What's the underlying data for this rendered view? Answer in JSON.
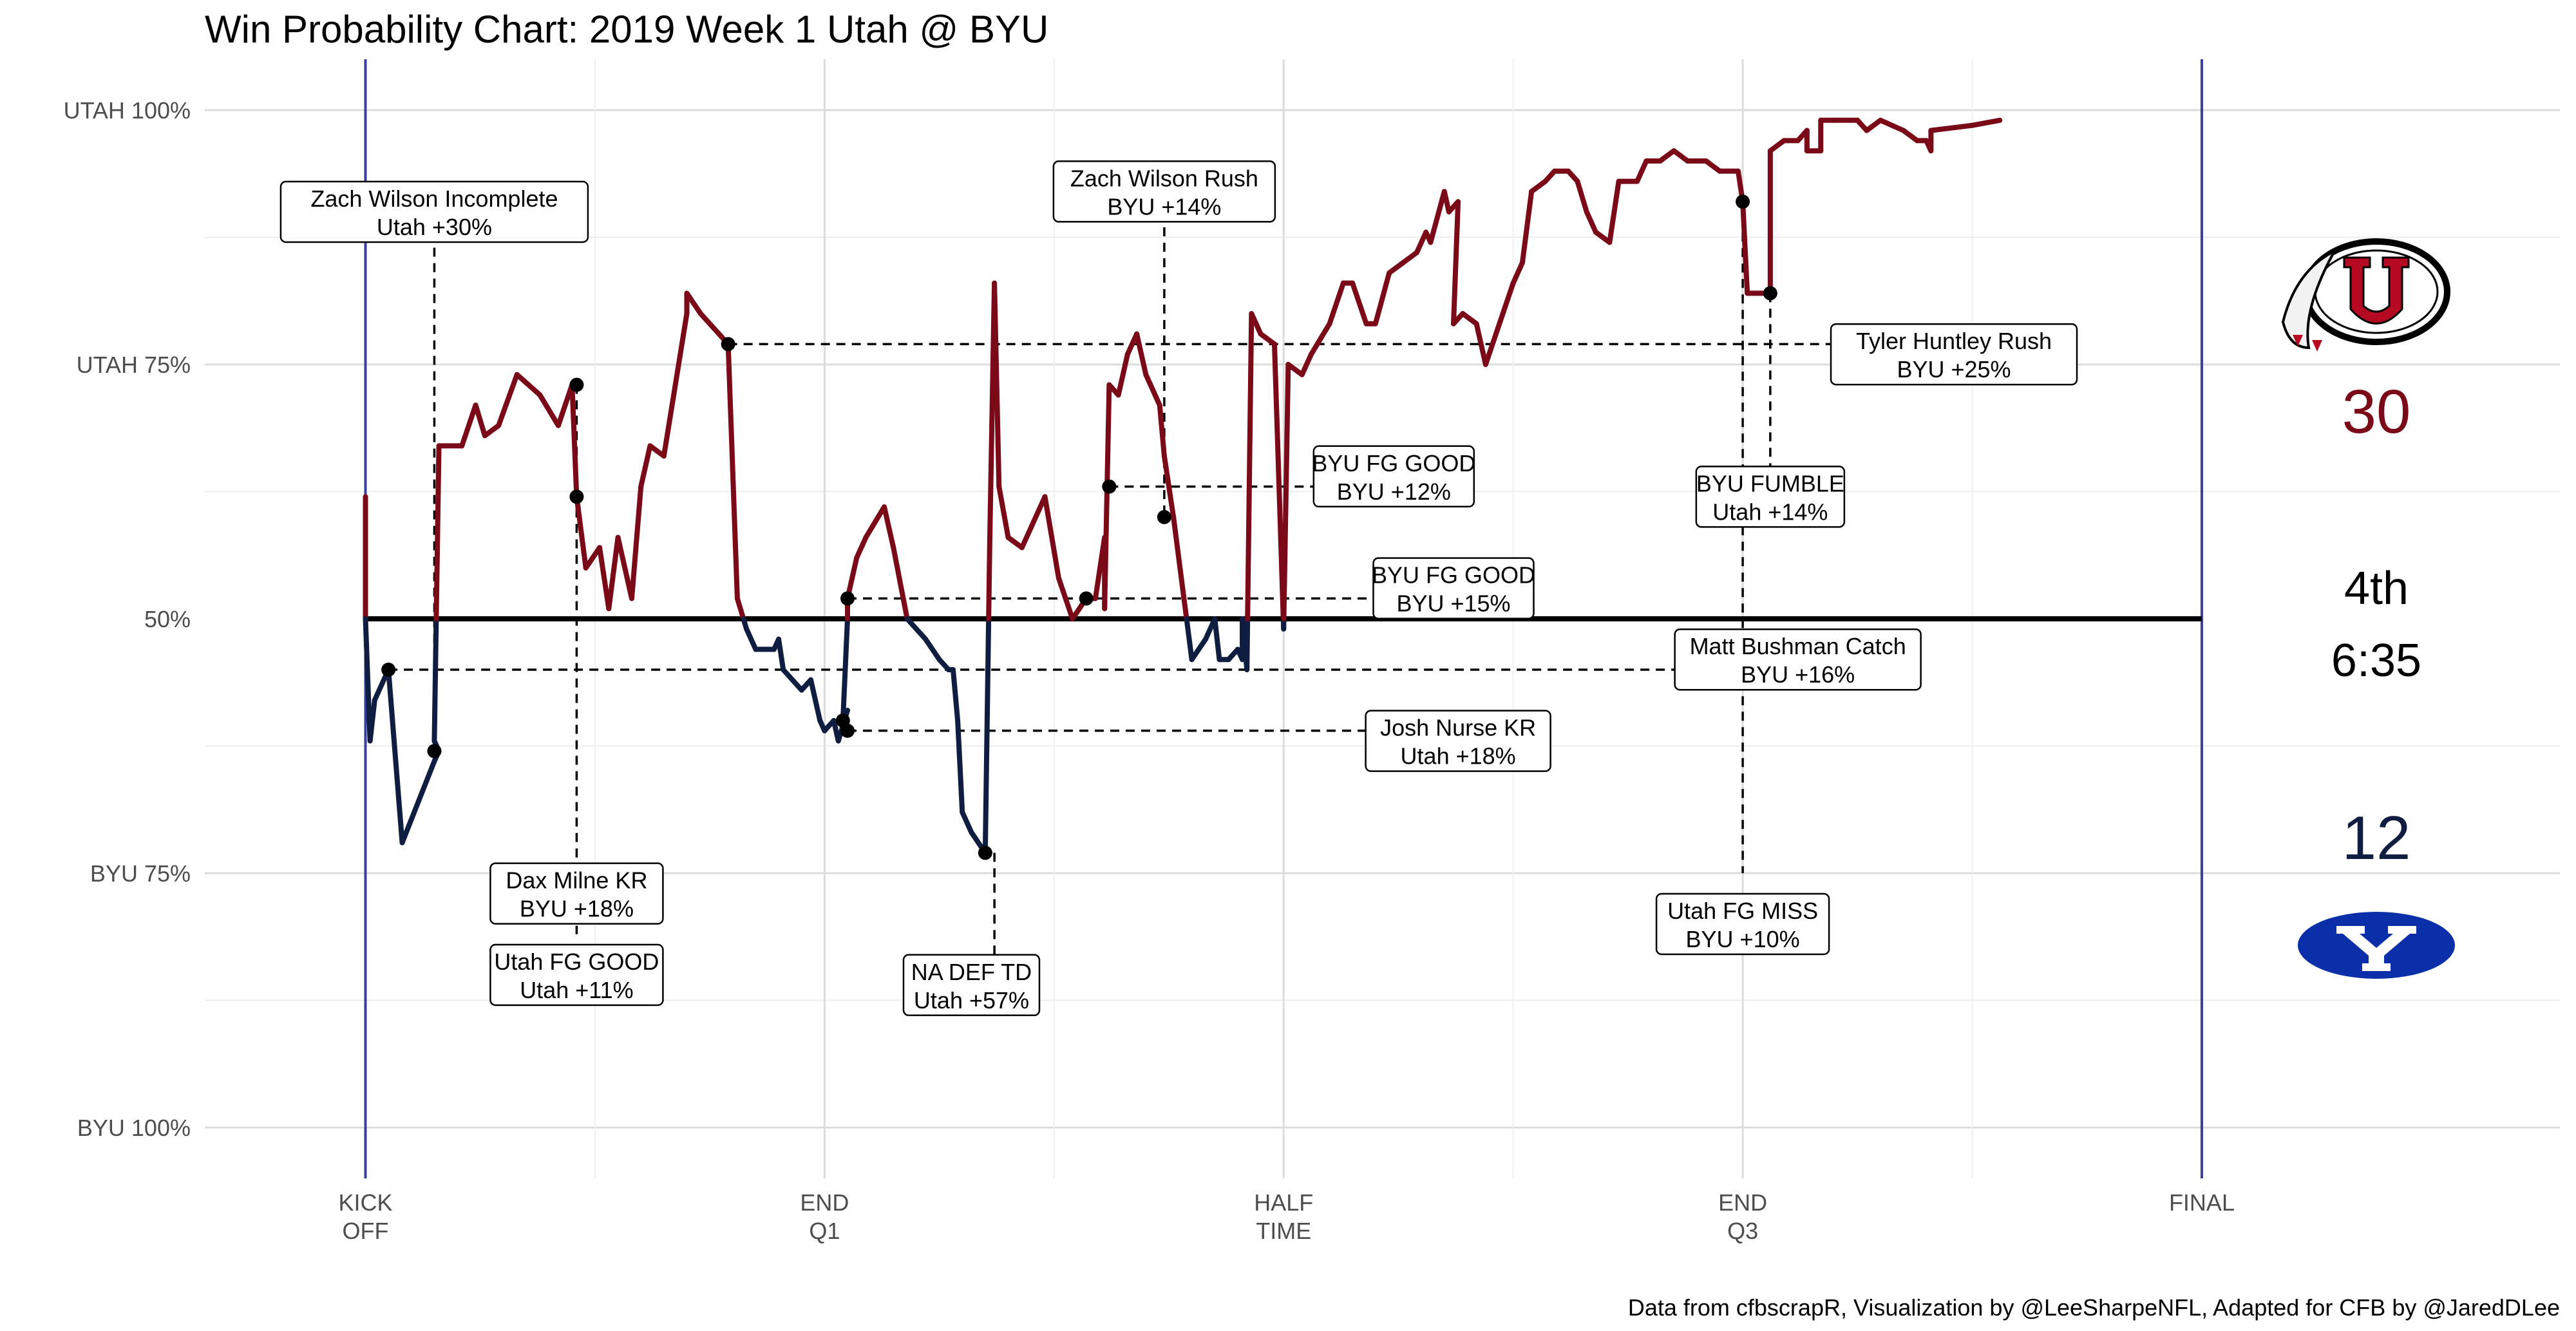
{
  "chart_data": {
    "type": "line",
    "title": "Win Probability Chart: 2019 Week 1 Utah @ BYU",
    "y_ticks": [
      "UTAH 100%",
      "UTAH 75%",
      "50%",
      "BYU 75%",
      "BYU 100%"
    ],
    "y_tick_values": [
      1.0,
      0.75,
      0.5,
      0.25,
      0.0
    ],
    "x_ticks": [
      {
        "value": 0,
        "lines": [
          "KICK",
          "OFF"
        ]
      },
      {
        "value": 1,
        "lines": [
          "END",
          "Q1"
        ]
      },
      {
        "value": 2,
        "lines": [
          "HALF",
          "TIME"
        ]
      },
      {
        "value": 3,
        "lines": [
          "END",
          "Q3"
        ]
      },
      {
        "value": 4,
        "lines": [
          "FINAL"
        ]
      }
    ],
    "xlim": [
      -0.35,
      4.78
    ],
    "ylim": [
      -0.05,
      1.05
    ],
    "y_meaning": "Utah win probability",
    "series": [
      {
        "team": "Utah/BYU",
        "points": [
          [
            0.0,
            0.62
          ],
          [
            0.0,
            0.5
          ],
          [
            0.01,
            0.38
          ],
          [
            0.02,
            0.42
          ],
          [
            0.05,
            0.45
          ],
          [
            0.08,
            0.28
          ],
          [
            0.15,
            0.36
          ],
          [
            0.16,
            0.37
          ],
          [
            0.15,
            0.38
          ],
          [
            0.16,
            0.67
          ],
          [
            0.21,
            0.67
          ],
          [
            0.24,
            0.71
          ],
          [
            0.26,
            0.68
          ],
          [
            0.29,
            0.69
          ],
          [
            0.33,
            0.74
          ],
          [
            0.38,
            0.72
          ],
          [
            0.42,
            0.69
          ],
          [
            0.45,
            0.73
          ],
          [
            0.46,
            0.62
          ],
          [
            0.48,
            0.55
          ],
          [
            0.51,
            0.57
          ],
          [
            0.53,
            0.51
          ],
          [
            0.55,
            0.58
          ],
          [
            0.58,
            0.52
          ],
          [
            0.6,
            0.63
          ],
          [
            0.62,
            0.67
          ],
          [
            0.65,
            0.66
          ],
          [
            0.7,
            0.8
          ],
          [
            0.7,
            0.82
          ],
          [
            0.73,
            0.8
          ],
          [
            0.77,
            0.78
          ],
          [
            0.79,
            0.77
          ],
          [
            0.81,
            0.52
          ],
          [
            0.83,
            0.49
          ],
          [
            0.85,
            0.47
          ],
          [
            0.89,
            0.47
          ],
          [
            0.9,
            0.48
          ],
          [
            0.91,
            0.45
          ],
          [
            0.93,
            0.44
          ],
          [
            0.95,
            0.43
          ],
          [
            0.97,
            0.44
          ],
          [
            0.99,
            0.4
          ],
          [
            1.0,
            0.39
          ],
          [
            1.02,
            0.4
          ],
          [
            1.03,
            0.38
          ],
          [
            1.05,
            0.41
          ],
          [
            1.04,
            0.4
          ],
          [
            1.05,
            0.5
          ],
          [
            1.05,
            0.52
          ],
          [
            1.07,
            0.56
          ],
          [
            1.09,
            0.58
          ],
          [
            1.13,
            0.61
          ],
          [
            1.15,
            0.57
          ],
          [
            1.18,
            0.5
          ],
          [
            1.22,
            0.48
          ],
          [
            1.25,
            0.46
          ],
          [
            1.27,
            0.45
          ],
          [
            1.28,
            0.45
          ],
          [
            1.29,
            0.4
          ],
          [
            1.3,
            0.31
          ],
          [
            1.32,
            0.29
          ],
          [
            1.35,
            0.27
          ],
          [
            1.36,
            0.58
          ],
          [
            1.37,
            0.83
          ],
          [
            1.38,
            0.63
          ],
          [
            1.4,
            0.58
          ],
          [
            1.43,
            0.57
          ],
          [
            1.46,
            0.6
          ],
          [
            1.48,
            0.62
          ],
          [
            1.51,
            0.54
          ],
          [
            1.54,
            0.5
          ],
          [
            1.57,
            0.52
          ],
          [
            1.59,
            0.52
          ],
          [
            1.61,
            0.58
          ],
          [
            1.61,
            0.51
          ],
          [
            1.62,
            0.73
          ],
          [
            1.64,
            0.72
          ],
          [
            1.66,
            0.76
          ],
          [
            1.68,
            0.78
          ],
          [
            1.7,
            0.74
          ],
          [
            1.73,
            0.71
          ],
          [
            1.74,
            0.66
          ],
          [
            1.76,
            0.6
          ],
          [
            1.78,
            0.53
          ],
          [
            1.8,
            0.46
          ],
          [
            1.83,
            0.48
          ],
          [
            1.85,
            0.5
          ],
          [
            1.86,
            0.46
          ],
          [
            1.88,
            0.46
          ],
          [
            1.9,
            0.47
          ],
          [
            1.91,
            0.46
          ],
          [
            1.91,
            0.5
          ],
          [
            1.92,
            0.45
          ],
          [
            1.93,
            0.8
          ],
          [
            1.95,
            0.78
          ],
          [
            1.98,
            0.77
          ],
          [
            2.0,
            0.49
          ],
          [
            2.01,
            0.75
          ],
          [
            2.04,
            0.74
          ],
          [
            2.06,
            0.76
          ],
          [
            2.1,
            0.79
          ],
          [
            2.13,
            0.83
          ],
          [
            2.15,
            0.83
          ],
          [
            2.18,
            0.79
          ],
          [
            2.2,
            0.79
          ],
          [
            2.23,
            0.84
          ],
          [
            2.26,
            0.85
          ],
          [
            2.29,
            0.86
          ],
          [
            2.31,
            0.88
          ],
          [
            2.32,
            0.87
          ],
          [
            2.35,
            0.92
          ],
          [
            2.36,
            0.9
          ],
          [
            2.38,
            0.91
          ],
          [
            2.37,
            0.79
          ],
          [
            2.39,
            0.8
          ],
          [
            2.42,
            0.79
          ],
          [
            2.44,
            0.75
          ],
          [
            2.47,
            0.79
          ],
          [
            2.5,
            0.83
          ],
          [
            2.52,
            0.85
          ],
          [
            2.54,
            0.92
          ],
          [
            2.57,
            0.93
          ],
          [
            2.59,
            0.94
          ],
          [
            2.62,
            0.94
          ],
          [
            2.64,
            0.93
          ],
          [
            2.66,
            0.9
          ],
          [
            2.68,
            0.88
          ],
          [
            2.71,
            0.87
          ],
          [
            2.73,
            0.93
          ],
          [
            2.77,
            0.93
          ],
          [
            2.79,
            0.95
          ],
          [
            2.82,
            0.95
          ],
          [
            2.85,
            0.96
          ],
          [
            2.88,
            0.95
          ],
          [
            2.92,
            0.95
          ],
          [
            2.95,
            0.94
          ],
          [
            2.97,
            0.94
          ],
          [
            2.99,
            0.94
          ],
          [
            3.0,
            0.91
          ],
          [
            3.01,
            0.82
          ],
          [
            3.04,
            0.82
          ],
          [
            3.06,
            0.82
          ],
          [
            3.06,
            0.96
          ],
          [
            3.09,
            0.97
          ],
          [
            3.12,
            0.97
          ],
          [
            3.14,
            0.98
          ],
          [
            3.14,
            0.96
          ],
          [
            3.17,
            0.96
          ],
          [
            3.17,
            0.99
          ],
          [
            3.2,
            0.99
          ],
          [
            3.25,
            0.99
          ],
          [
            3.27,
            0.98
          ],
          [
            3.3,
            0.99
          ],
          [
            3.35,
            0.98
          ],
          [
            3.38,
            0.97
          ],
          [
            3.4,
            0.97
          ],
          [
            3.41,
            0.96
          ],
          [
            3.41,
            0.98
          ],
          [
            3.5,
            0.985
          ],
          [
            3.56,
            0.99
          ]
        ]
      }
    ],
    "markers": [
      [
        0.05,
        0.45
      ],
      [
        0.15,
        0.37
      ],
      [
        0.46,
        0.73
      ],
      [
        0.46,
        0.62
      ],
      [
        0.79,
        0.77
      ],
      [
        1.05,
        0.52
      ],
      [
        1.04,
        0.4
      ],
      [
        1.05,
        0.39
      ],
      [
        1.35,
        0.27
      ],
      [
        1.57,
        0.52
      ],
      [
        1.62,
        0.63
      ],
      [
        1.74,
        0.6
      ],
      [
        3.0,
        0.91
      ],
      [
        3.06,
        0.82
      ]
    ],
    "annotations": [
      {
        "line1": "Zach Wilson  Incomplete",
        "line2": "Utah +30%",
        "x": 0.15,
        "y": 0.9
      },
      {
        "line1": "Dax Milne KR",
        "line2": "BYU +18%",
        "x": 0.46,
        "y": 0.23
      },
      {
        "line1": "Utah FG GOOD",
        "line2": "Utah +11%",
        "x": 0.46,
        "y": 0.15
      },
      {
        "line1": "NA DEF TD",
        "line2": "Utah +57%",
        "x": 1.32,
        "y": 0.14
      },
      {
        "line1": "Zach Wilson Rush",
        "line2": "BYU +14%",
        "x": 1.74,
        "y": 0.92
      },
      {
        "line1": "BYU FG GOOD",
        "line2": "BYU +12%",
        "x": 2.24,
        "y": 0.64
      },
      {
        "line1": "BYU FG GOOD",
        "line2": "BYU +15%",
        "x": 2.37,
        "y": 0.53
      },
      {
        "line1": "Josh Nurse KR",
        "line2": "Utah +18%",
        "x": 2.38,
        "y": 0.38
      },
      {
        "line1": "Tyler Huntley Rush",
        "line2": "BYU +25%",
        "x": 3.46,
        "y": 0.76
      },
      {
        "line1": "BYU FUMBLE",
        "line2": "Utah +14%",
        "x": 3.06,
        "y": 0.62
      },
      {
        "line1": "Matt Bushman Catch",
        "line2": "BYU +16%",
        "x": 3.12,
        "y": 0.46
      },
      {
        "line1": "Utah FG MISS",
        "line2": "BYU +10%",
        "x": 3.0,
        "y": 0.2
      }
    ],
    "guides": [
      {
        "x1": 0.15,
        "y1": 0.88,
        "x2": 0.15,
        "y2": 0.37
      },
      {
        "x1": 0.46,
        "y1": 0.73,
        "x2": 0.46,
        "y2": 0.19
      },
      {
        "x1": 1.74,
        "y1": 0.9,
        "x2": 1.74,
        "y2": 0.6
      },
      {
        "x1": 3.0,
        "y1": 0.91,
        "x2": 3.0,
        "y2": 0.25
      },
      {
        "x1": 3.06,
        "y1": 0.82,
        "x2": 3.06,
        "y2": 0.64
      },
      {
        "x1": 1.37,
        "y1": 0.27,
        "x2": 1.37,
        "y2": 0.16
      },
      {
        "x1": 0.79,
        "y1": 0.77,
        "x2": 3.46,
        "y2": 0.77
      },
      {
        "x1": 1.62,
        "y1": 0.63,
        "x2": 2.24,
        "y2": 0.63
      },
      {
        "x1": 1.05,
        "y1": 0.52,
        "x2": 2.37,
        "y2": 0.52
      },
      {
        "x1": 0.05,
        "y1": 0.45,
        "x2": 3.12,
        "y2": 0.45
      },
      {
        "x1": 1.05,
        "y1": 0.39,
        "x2": 2.38,
        "y2": 0.39
      }
    ],
    "colors": {
      "utah": "#7a0a17",
      "byu": "#0f1e40",
      "final_line": "#3a3f9a",
      "grid": "#dcdcdc"
    }
  },
  "scoreboard": {
    "utah_score": "30",
    "byu_score": "12",
    "quarter": "4th",
    "clock": "6:35",
    "utah_logo": "utah-u-logo",
    "byu_logo": "byu-y-logo"
  },
  "caption": "Data from cfbscrapR, Visualization by @LeeSharpeNFL, Adapted for CFB by @JaredDLee"
}
